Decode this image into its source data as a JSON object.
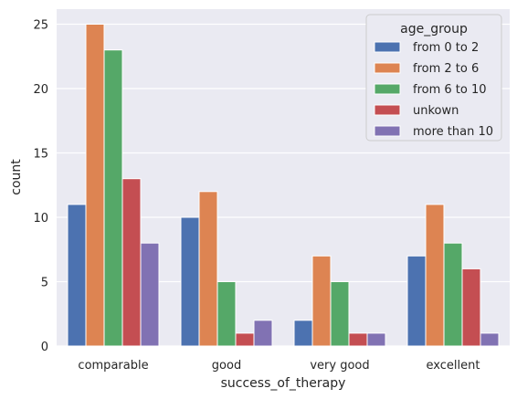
{
  "chart_data": {
    "type": "bar",
    "title": "",
    "xlabel": "success_of_therapy",
    "ylabel": "count",
    "categories": [
      "comparable",
      "good",
      "very good",
      "excellent"
    ],
    "ylim": [
      0,
      26
    ],
    "yticks": [
      0,
      5,
      10,
      15,
      20,
      25
    ],
    "grid": true,
    "legend_title": "age_group",
    "legend_position": "top-right",
    "series": [
      {
        "name": "from 0 to 2",
        "color": "#4c72b0",
        "values": [
          11,
          10,
          2,
          7
        ]
      },
      {
        "name": "from 2 to 6",
        "color": "#dd8452",
        "values": [
          25,
          12,
          7,
          11
        ]
      },
      {
        "name": "from 6 to 10",
        "color": "#55a868",
        "values": [
          23,
          5,
          5,
          8
        ]
      },
      {
        "name": "unkown",
        "color": "#c44e52",
        "values": [
          13,
          1,
          1,
          6
        ]
      },
      {
        "name": "more than 10",
        "color": "#8172b3",
        "values": [
          8,
          2,
          1,
          1
        ]
      }
    ]
  }
}
